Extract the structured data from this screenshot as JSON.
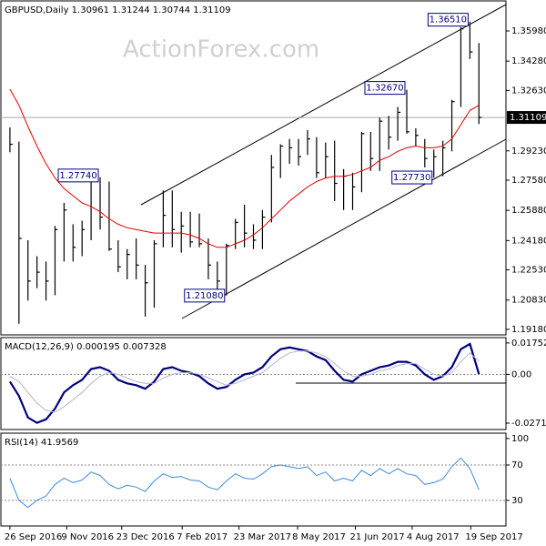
{
  "chart_data": [
    {
      "type": "ohlc",
      "title": "GBPUSD,Daily  1.30961 1.31244 1.30744 1.31109",
      "watermark": "ActionForex.com",
      "xlim": [
        -1,
        55
      ],
      "ylim": [
        1.1887,
        1.3767
      ],
      "yticks": [
        {
          "value": 1.3598,
          "label": "1.35980"
        },
        {
          "value": 1.3428,
          "label": "1.34280"
        },
        {
          "value": 1.3263,
          "label": "1.32630"
        },
        {
          "value": 1.2923,
          "label": "1.29230"
        },
        {
          "value": 1.2758,
          "label": "1.27580"
        },
        {
          "value": 1.2588,
          "label": "1.25880"
        },
        {
          "value": 1.2418,
          "label": "1.24180"
        },
        {
          "value": 1.2253,
          "label": "1.22530"
        },
        {
          "value": 1.2083,
          "label": "1.20830"
        },
        {
          "value": 1.1918,
          "label": "1.19180"
        }
      ],
      "last": 1.31109,
      "color": "#000000",
      "high": [
        1.3055,
        1.2975,
        1.242,
        1.233,
        1.23,
        1.25,
        1.263,
        1.251,
        1.253,
        1.277,
        1.2774,
        1.275,
        1.242,
        1.237,
        1.243,
        1.228,
        1.242,
        1.27,
        1.27,
        1.258,
        1.258,
        1.257,
        1.243,
        1.23,
        1.24,
        1.254,
        1.262,
        1.251,
        1.259,
        1.29,
        1.296,
        1.299,
        1.299,
        1.304,
        1.3,
        1.297,
        1.298,
        1.282,
        1.28,
        1.303,
        1.303,
        1.311,
        1.312,
        1.317,
        1.3267,
        1.305,
        1.299,
        1.293,
        1.298,
        1.321,
        1.362,
        1.3651,
        1.353
      ],
      "low": [
        1.2915,
        1.195,
        1.208,
        1.215,
        1.208,
        1.211,
        1.23,
        1.23,
        1.233,
        1.242,
        1.248,
        1.236,
        1.224,
        1.22,
        1.22,
        1.199,
        1.204,
        1.238,
        1.238,
        1.235,
        1.238,
        1.238,
        1.22,
        1.211,
        1.2108,
        1.237,
        1.238,
        1.237,
        1.237,
        1.252,
        1.277,
        1.285,
        1.284,
        1.29,
        1.277,
        1.277,
        1.264,
        1.259,
        1.259,
        1.269,
        1.281,
        1.281,
        1.293,
        1.298,
        1.302,
        1.295,
        1.283,
        1.2773,
        1.278,
        1.292,
        1.317,
        1.344,
        1.3074
      ],
      "close": [
        1.296,
        1.243,
        1.219,
        1.224,
        1.219,
        1.248,
        1.259,
        1.238,
        1.248,
        1.276,
        1.255,
        1.237,
        1.227,
        1.234,
        1.228,
        1.218,
        1.24,
        1.256,
        1.248,
        1.25,
        1.241,
        1.24,
        1.228,
        1.219,
        1.239,
        1.252,
        1.246,
        1.242,
        1.255,
        1.283,
        1.295,
        1.294,
        1.289,
        1.299,
        1.28,
        1.289,
        1.274,
        1.278,
        1.272,
        1.302,
        1.288,
        1.309,
        1.3,
        1.314,
        1.303,
        1.301,
        1.288,
        1.289,
        1.294,
        1.32,
        1.361,
        1.348,
        1.31109
      ],
      "series": [
        {
          "color": "#e00000",
          "values": [
            1.327,
            1.318,
            1.306,
            1.295,
            1.285,
            1.277,
            1.271,
            1.267,
            1.263,
            1.261,
            1.258,
            1.254,
            1.251,
            1.249,
            1.248,
            1.247,
            1.246,
            1.246,
            1.246,
            1.246,
            1.245,
            1.243,
            1.24,
            1.238,
            1.238,
            1.24,
            1.242,
            1.245,
            1.249,
            1.254,
            1.259,
            1.264,
            1.268,
            1.272,
            1.275,
            1.277,
            1.278,
            1.278,
            1.279,
            1.281,
            1.283,
            1.287,
            1.289,
            1.292,
            1.294,
            1.295,
            1.294,
            1.294,
            1.295,
            1.299,
            1.307,
            1.315,
            1.318
          ]
        }
      ],
      "annotations": [
        {
          "value": 1.3651,
          "label": "1.36510"
        },
        {
          "value": 1.3267,
          "label": "1.32670"
        },
        {
          "value": 1.2774,
          "label": "1.27740"
        },
        {
          "value": 1.2773,
          "label": "1.27730"
        },
        {
          "value": 1.2108,
          "label": "1.21080"
        }
      ]
    },
    {
      "type": "line",
      "title": "MACD(12,26,9) 0.000195 0.007328",
      "xlim": [
        -1,
        55
      ],
      "ylim": [
        -0.0307,
        0.0205
      ],
      "yticks": [
        0.017521,
        {
          "value": 0,
          "label": "0.00"
        },
        -0.027169
      ],
      "levels": [
        0
      ],
      "series": [
        {
          "color": "#000080",
          "width": 2.2,
          "values": [
            -0.004,
            -0.012,
            -0.024,
            -0.027,
            -0.025,
            -0.019,
            -0.01,
            -0.006,
            -0.003,
            0.003,
            0.004,
            0.002,
            -0.003,
            -0.005,
            -0.006,
            -0.008,
            -0.004,
            0.003,
            0.004,
            0.002,
            0.001,
            -0.001,
            -0.005,
            -0.008,
            -0.007,
            -0.003,
            0.0,
            0.001,
            0.004,
            0.01,
            0.014,
            0.015,
            0.014,
            0.013,
            0.01,
            0.008,
            0.002,
            -0.003,
            -0.004,
            0.0,
            0.002,
            0.004,
            0.005,
            0.007,
            0.007,
            0.005,
            0.0,
            -0.003,
            -0.001,
            0.004,
            0.014,
            0.017,
            0.000195
          ]
        },
        {
          "color": "#b4b4cc",
          "width": 1,
          "values": [
            -0.001,
            -0.004,
            -0.01,
            -0.016,
            -0.02,
            -0.021,
            -0.018,
            -0.014,
            -0.01,
            -0.005,
            -0.001,
            0.001,
            0.0,
            -0.002,
            -0.004,
            -0.005,
            -0.005,
            -0.002,
            0.0,
            0.001,
            0.001,
            0.0,
            -0.002,
            -0.004,
            -0.006,
            -0.005,
            -0.003,
            -0.001,
            0.001,
            0.005,
            0.009,
            0.012,
            0.013,
            0.013,
            0.012,
            0.01,
            0.006,
            0.002,
            -0.001,
            -0.001,
            0.0,
            0.002,
            0.003,
            0.005,
            0.006,
            0.006,
            0.003,
            0.0,
            -0.001,
            0.001,
            0.007,
            0.012,
            0.007328
          ]
        }
      ]
    },
    {
      "type": "line",
      "title": "RSI(14) 41.9569",
      "xlim": [
        -1,
        55
      ],
      "ylim": [
        1,
        106
      ],
      "yticks": [
        100,
        70,
        30
      ],
      "levels": [
        70,
        30
      ],
      "xticks": [
        {
          "value": 0,
          "label": "26 Sep 2016"
        },
        {
          "value": 6.3,
          "label": "9 Nov 2016"
        },
        {
          "value": 12.4,
          "label": "23 Dec 2016"
        },
        {
          "value": 19.1,
          "label": "7 Feb 2017"
        },
        {
          "value": 25.4,
          "label": "23 Mar 2017"
        },
        {
          "value": 31.9,
          "label": "8 May 2017"
        },
        {
          "value": 38.3,
          "label": "21 Jun 2017"
        },
        {
          "value": 44.6,
          "label": "4 Aug 2017"
        },
        {
          "value": 51.1,
          "label": "19 Sep 2017"
        }
      ],
      "series": [
        {
          "color": "#3c8cdc",
          "width": 1,
          "values": [
            55,
            30,
            22,
            30,
            35,
            48,
            55,
            50,
            53,
            62,
            58,
            48,
            43,
            47,
            45,
            40,
            52,
            60,
            56,
            57,
            53,
            52,
            45,
            42,
            52,
            60,
            55,
            54,
            60,
            68,
            70,
            68,
            66,
            68,
            58,
            62,
            52,
            55,
            52,
            64,
            58,
            66,
            60,
            66,
            60,
            58,
            48,
            50,
            54,
            68,
            78,
            66,
            41.9569
          ]
        }
      ]
    }
  ]
}
